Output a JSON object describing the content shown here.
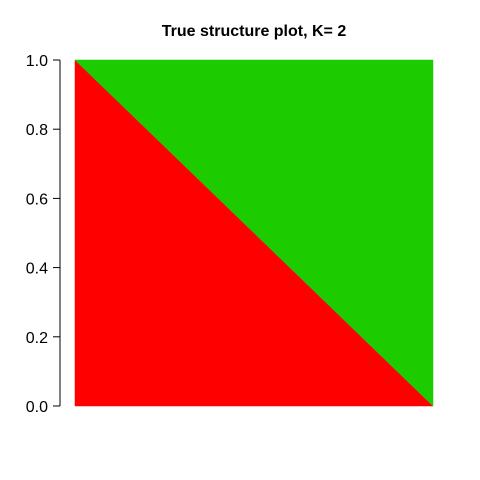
{
  "chart_data": {
    "type": "area",
    "title": "True structure plot, K= 2",
    "xlabel": "",
    "ylabel": "",
    "ylim": [
      0,
      1
    ],
    "yticks": [
      "0.0",
      "0.2",
      "0.4",
      "0.6",
      "0.8",
      "1.0"
    ],
    "x_axis_shown": false,
    "grid": false,
    "stacked": true,
    "series": [
      {
        "color": "#ff0000",
        "x": [
          0,
          1
        ],
        "values": [
          1.0,
          0.0
        ]
      },
      {
        "color": "#1ccc00",
        "x": [
          0,
          1
        ],
        "values": [
          0.0,
          1.0
        ]
      }
    ]
  }
}
